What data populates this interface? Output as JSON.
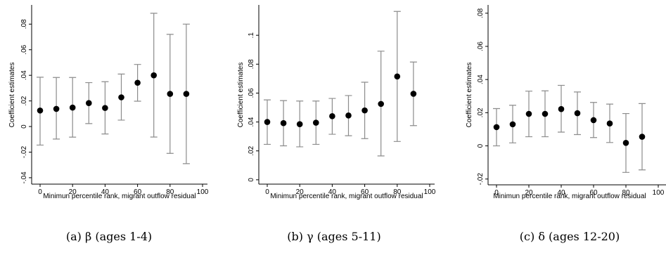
{
  "charts": [
    {
      "id": "a",
      "caption": "(a) β (ages 1-4)",
      "chart_data": {
        "type": "scatter",
        "ylabel": "Coefficient estimates",
        "xlabel": "Minimun percentile rank, migrant outflow residual",
        "x": [
          0,
          10,
          20,
          30,
          40,
          50,
          60,
          70,
          80,
          90
        ],
        "y": [
          0.0125,
          0.0138,
          0.0148,
          0.0183,
          0.0145,
          0.0228,
          0.0342,
          0.04,
          0.0255,
          0.0255
        ],
        "ci_low": [
          -0.0145,
          -0.0098,
          -0.0083,
          0.0023,
          -0.0058,
          0.005,
          0.0198,
          -0.0082,
          -0.021,
          -0.029
        ],
        "ci_high": [
          0.0385,
          0.0383,
          0.0383,
          0.0343,
          0.035,
          0.041,
          0.0485,
          0.0885,
          0.072,
          0.08
        ],
        "xlim": [
          0,
          100
        ],
        "ylim": [
          -0.045,
          0.095
        ],
        "xticks": [
          0,
          20,
          40,
          60,
          80,
          100
        ],
        "xtick_labels": [
          "0",
          "20",
          "40",
          "60",
          "80",
          "100"
        ],
        "yticks": [
          -0.04,
          -0.02,
          0,
          0.02,
          0.04,
          0.06,
          0.08
        ],
        "ytick_labels": [
          "-.04",
          "-.02",
          "0",
          ".02",
          ".04",
          ".06",
          ".08"
        ]
      }
    },
    {
      "id": "b",
      "caption": "(b) γ (ages 5-11)",
      "chart_data": {
        "type": "scatter",
        "ylabel": "Coefficient estimates",
        "xlabel": "Minimun percentile rank, migrant outflow residual",
        "x": [
          0,
          10,
          20,
          30,
          40,
          50,
          60,
          70,
          80,
          90
        ],
        "y": [
          0.04,
          0.0392,
          0.0385,
          0.0395,
          0.044,
          0.0445,
          0.048,
          0.0525,
          0.0715,
          0.0595
        ],
        "ci_low": [
          0.0245,
          0.0235,
          0.0228,
          0.0245,
          0.0315,
          0.0305,
          0.0285,
          0.0165,
          0.0265,
          0.0375
        ],
        "ci_high": [
          0.0553,
          0.0548,
          0.0545,
          0.0545,
          0.0563,
          0.0583,
          0.0675,
          0.089,
          0.1165,
          0.0815
        ],
        "xlim": [
          0,
          100
        ],
        "ylim": [
          -0.003,
          0.121
        ],
        "xticks": [
          0,
          20,
          40,
          60,
          80,
          100
        ],
        "xtick_labels": [
          "0",
          "20",
          "40",
          "60",
          "80",
          "100"
        ],
        "yticks": [
          0,
          0.02,
          0.04,
          0.06,
          0.08,
          0.1
        ],
        "ytick_labels": [
          "0",
          ".02",
          ".04",
          ".06",
          ".08",
          ".1"
        ]
      }
    },
    {
      "id": "c",
      "caption": "(c) δ (ages 12-20)",
      "chart_data": {
        "type": "scatter",
        "ylabel": "Coefficient estimates",
        "xlabel": "Minimun percentile rank, migrant outflow residual",
        "x": [
          0,
          10,
          20,
          30,
          40,
          50,
          60,
          70,
          80,
          90
        ],
        "y": [
          0.0113,
          0.013,
          0.0193,
          0.0193,
          0.0222,
          0.0197,
          0.0155,
          0.0135,
          0.0018,
          0.0055
        ],
        "ci_low": [
          0.0,
          0.0018,
          0.0055,
          0.0055,
          0.0083,
          0.0068,
          0.005,
          0.002,
          -0.016,
          -0.0145
        ],
        "ci_high": [
          0.0225,
          0.0245,
          0.033,
          0.0332,
          0.0365,
          0.0325,
          0.0262,
          0.0252,
          0.0195,
          0.0255
        ],
        "xlim": [
          0,
          100
        ],
        "ylim": [
          -0.0235,
          0.085
        ],
        "xticks": [
          0,
          20,
          40,
          60,
          80,
          100
        ],
        "xtick_labels": [
          "0",
          "20",
          "40",
          "60",
          "80",
          "100"
        ],
        "yticks": [
          -0.02,
          0,
          0.02,
          0.04,
          0.06,
          0.08
        ],
        "ytick_labels": [
          "-.02",
          "0",
          ".02",
          ".04",
          ".06",
          ".08"
        ]
      }
    }
  ]
}
